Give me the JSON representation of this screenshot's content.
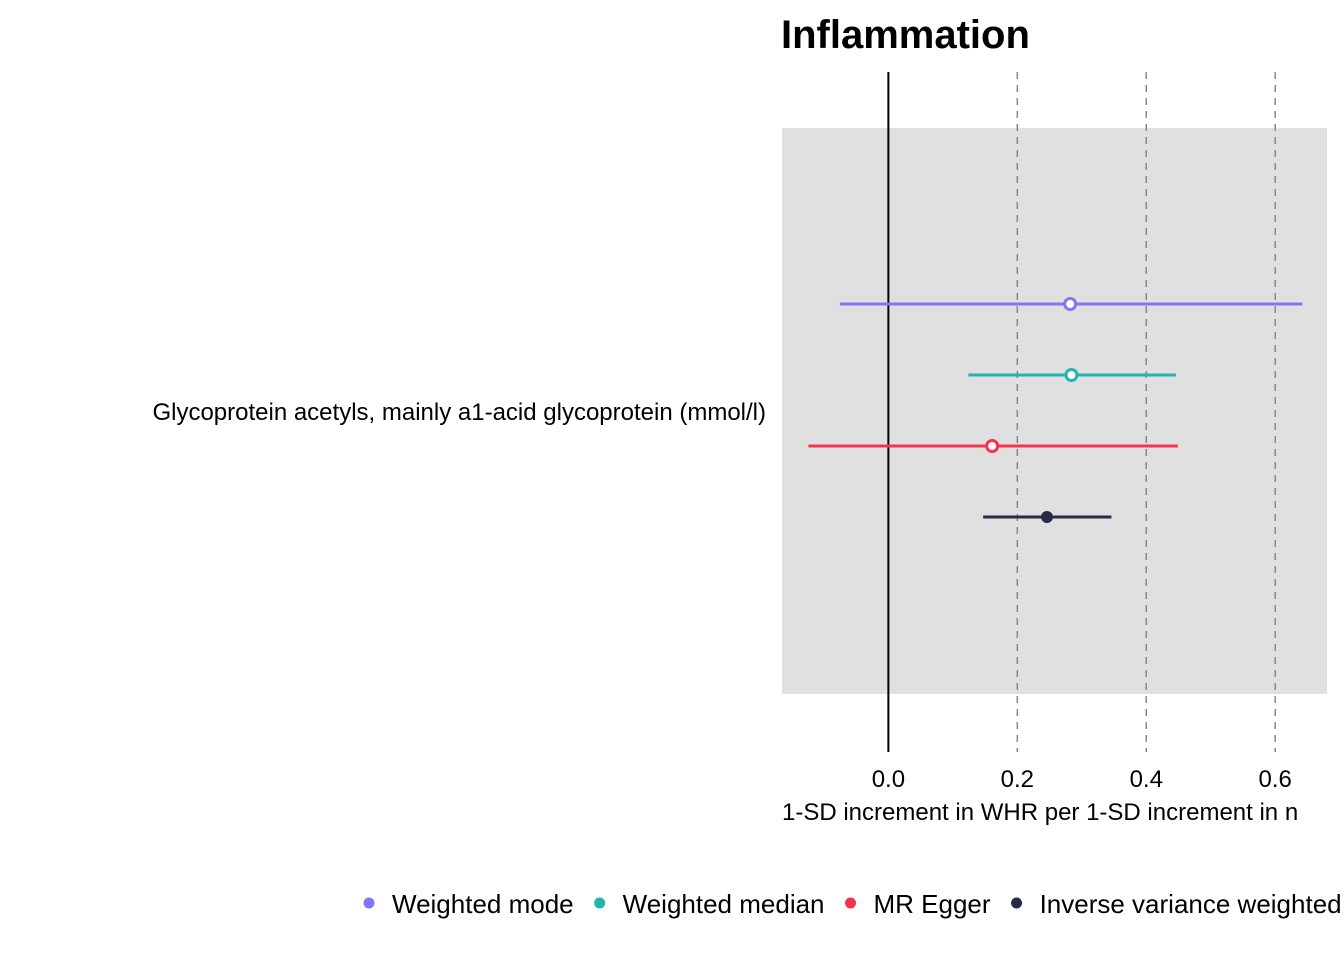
{
  "chart_data": {
    "type": "forest",
    "title": "Inflammation",
    "xlabel": "1-SD increment in WHR per 1-SD increment in n",
    "category": "Glycoprotein acetyls, mainly a1-acid glycoprotein (mmol/l)",
    "xlim": [
      -0.165,
      0.685
    ],
    "xticks": [
      "0.0",
      "0.2",
      "0.4",
      "0.6"
    ],
    "reference_line": 0.0,
    "grid_dashed_at": [
      0.2,
      0.4,
      0.6
    ],
    "series": [
      {
        "name": "Weighted mode",
        "color": "#7f77f5",
        "estimate": 0.282,
        "lower": -0.075,
        "upper": 0.642,
        "filled": false
      },
      {
        "name": "Weighted median",
        "color": "#1fb6b0",
        "estimate": 0.284,
        "lower": 0.124,
        "upper": 0.446,
        "filled": false
      },
      {
        "name": "MR Egger",
        "color": "#f5334d",
        "estimate": 0.161,
        "lower": -0.124,
        "upper": 0.449,
        "filled": false
      },
      {
        "name": "Inverse variance weighted",
        "color": "#262d47",
        "estimate": 0.246,
        "lower": 0.147,
        "upper": 0.346,
        "filled": true
      }
    ]
  }
}
